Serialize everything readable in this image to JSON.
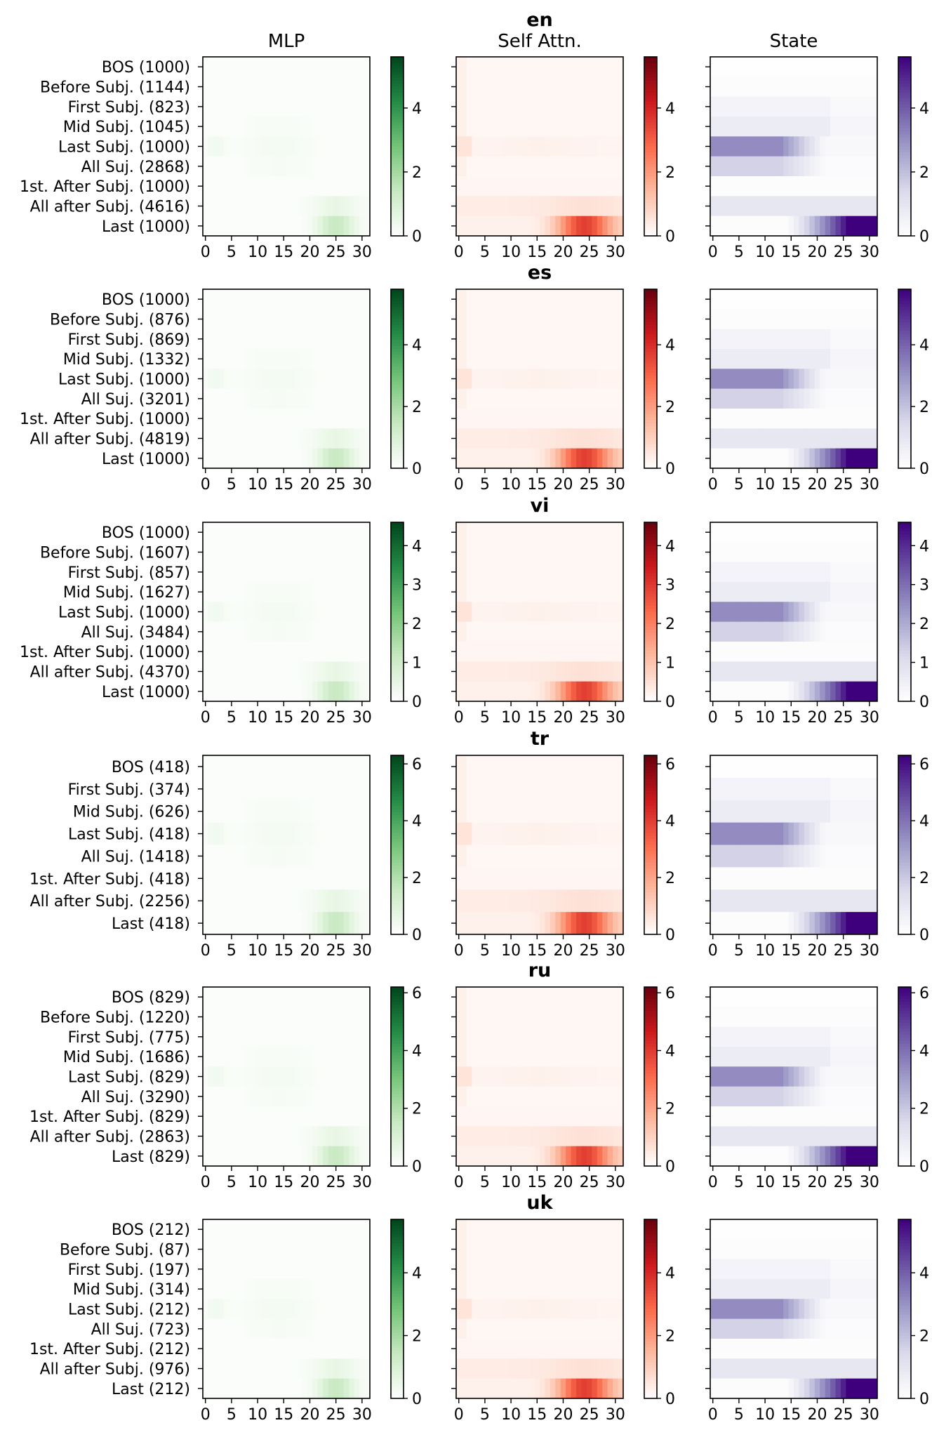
{
  "chart_data": {
    "type": "heatmap",
    "columns": [
      {
        "title": "MLP",
        "colormap": "Greens",
        "colors": [
          "#ffffff",
          "#c7e9c0",
          "#74c476",
          "#238b45",
          "#00441b"
        ]
      },
      {
        "title": "Self Attn.",
        "colormap": "Reds",
        "colors": [
          "#ffffff",
          "#fcbba1",
          "#fb6a4a",
          "#cb181d",
          "#67000d"
        ]
      },
      {
        "title": "State",
        "colormap": "Purples",
        "colors": [
          "#ffffff",
          "#dadaeb",
          "#9e9ac8",
          "#6a51a3",
          "#3f007d"
        ]
      }
    ],
    "x_ticks": [
      "0",
      "5",
      "10",
      "15",
      "20",
      "25",
      "30"
    ],
    "x_range": [
      0,
      31
    ],
    "panels": [
      {
        "lang": "en",
        "vmax": 5.6,
        "cbar_ticks": [
          "0",
          "2",
          "4"
        ],
        "rows": [
          "BOS (1000)",
          "Before Subj. (1144)",
          "First Subj. (823)",
          "Mid Subj. (1045)",
          "Last Subj. (1000)",
          "All Suj. (2868)",
          "1st. After Subj. (1000)",
          "All after Subj. (4616)",
          "Last (1000)"
        ],
        "kinds": [
          "bos",
          "before",
          "first",
          "mid",
          "last_subj",
          "all_subj",
          "first_after",
          "all_after",
          "last"
        ]
      },
      {
        "lang": "es",
        "vmax": 5.8,
        "cbar_ticks": [
          "0",
          "2",
          "4"
        ],
        "rows": [
          "BOS (1000)",
          "Before Subj. (876)",
          "First Subj. (869)",
          "Mid Subj. (1332)",
          "Last Subj. (1000)",
          "All Suj. (3201)",
          "1st. After Subj. (1000)",
          "All after Subj. (4819)",
          "Last (1000)"
        ],
        "kinds": [
          "bos",
          "before",
          "first",
          "mid",
          "last_subj",
          "all_subj",
          "first_after",
          "all_after",
          "last"
        ]
      },
      {
        "lang": "vi",
        "vmax": 4.6,
        "cbar_ticks": [
          "0",
          "1",
          "2",
          "3",
          "4"
        ],
        "rows": [
          "BOS (1000)",
          "Before Subj. (1607)",
          "First Subj. (857)",
          "Mid Subj. (1627)",
          "Last Subj. (1000)",
          "All Suj. (3484)",
          "1st. After Subj. (1000)",
          "All after Subj. (4370)",
          "Last (1000)"
        ],
        "kinds": [
          "bos",
          "before",
          "first",
          "mid",
          "last_subj",
          "all_subj",
          "first_after",
          "all_after",
          "last"
        ]
      },
      {
        "lang": "tr",
        "vmax": 6.3,
        "cbar_ticks": [
          "0",
          "2",
          "4",
          "6"
        ],
        "rows": [
          "BOS (418)",
          "First Subj. (374)",
          "Mid Subj. (626)",
          "Last Subj. (418)",
          "All Suj. (1418)",
          "1st. After Subj. (418)",
          "All after Subj. (2256)",
          "Last (418)"
        ],
        "kinds": [
          "bos",
          "first",
          "mid",
          "last_subj",
          "all_subj",
          "first_after",
          "all_after",
          "last"
        ]
      },
      {
        "lang": "ru",
        "vmax": 6.2,
        "cbar_ticks": [
          "0",
          "2",
          "4",
          "6"
        ],
        "rows": [
          "BOS (829)",
          "Before Subj. (1220)",
          "First Subj. (775)",
          "Mid Subj. (1686)",
          "Last Subj. (829)",
          "All Suj. (3290)",
          "1st. After Subj. (829)",
          "All after Subj. (2863)",
          "Last (829)"
        ],
        "kinds": [
          "bos",
          "before",
          "first",
          "mid",
          "last_subj",
          "all_subj",
          "first_after",
          "all_after",
          "last"
        ]
      },
      {
        "lang": "uk",
        "vmax": 5.7,
        "cbar_ticks": [
          "0",
          "2",
          "4"
        ],
        "rows": [
          "BOS (212)",
          "Before Subj. (87)",
          "First Subj. (197)",
          "Mid Subj. (314)",
          "Last Subj. (212)",
          "All Suj. (723)",
          "1st. After Subj. (212)",
          "All after Subj. (976)",
          "Last (212)"
        ],
        "kinds": [
          "bos",
          "before",
          "first",
          "mid",
          "last_subj",
          "all_subj",
          "first_after",
          "all_after",
          "last"
        ]
      }
    ]
  }
}
